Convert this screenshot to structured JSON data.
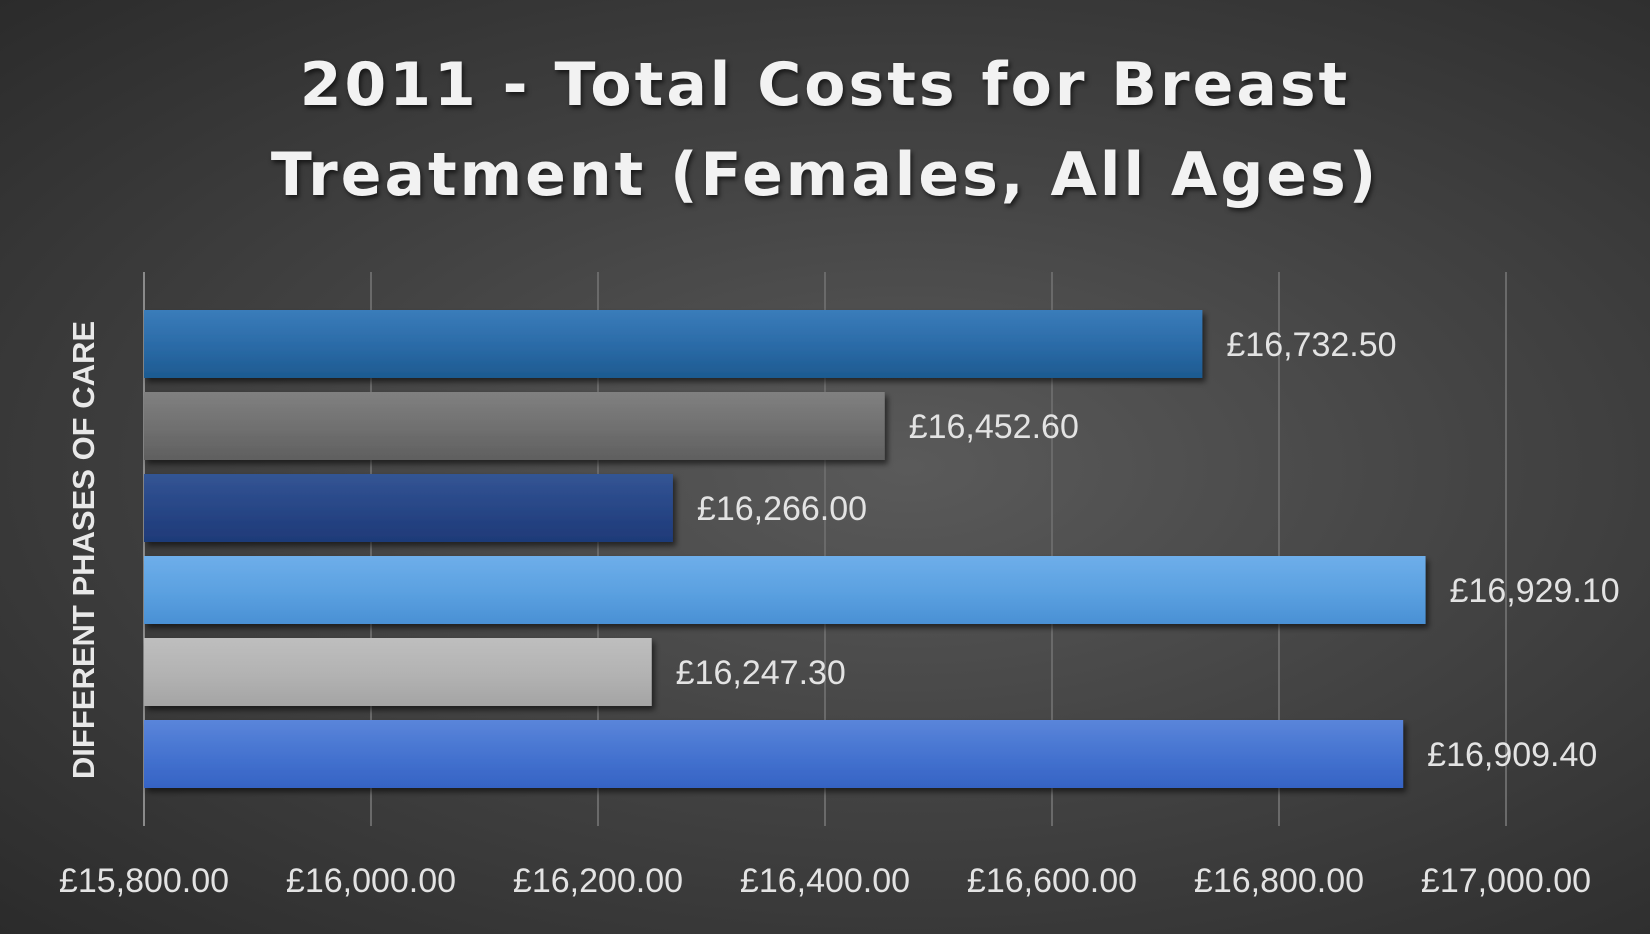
{
  "chart_data": {
    "type": "bar",
    "orientation": "horizontal",
    "title": "2011 - Total Costs for Breast Treatment (Females, All Ages)",
    "title_lines": [
      "2011 - Total Costs for Breast",
      "Treatment (Females, All Ages)"
    ],
    "xlabel": "",
    "ylabel": "DIFFERENT PHASES OF CARE",
    "xlim": [
      15800,
      17000
    ],
    "x_ticks": [
      15800,
      16000,
      16200,
      16400,
      16600,
      16800,
      17000
    ],
    "x_tick_labels": [
      "£15,800.00",
      "£16,000.00",
      "£16,200.00",
      "£16,400.00",
      "£16,600.00",
      "£16,800.00",
      "£17,000.00"
    ],
    "grid": "vertical",
    "legend": "none",
    "values": [
      16732.5,
      16452.6,
      16266.0,
      16929.1,
      16247.3,
      16909.4
    ],
    "data_labels": [
      "£16,732.50",
      "£16,452.60",
      "£16,266.00",
      "£16,929.10",
      "£16,247.30",
      "£16,909.40"
    ],
    "bar_colors": [
      "#2a6aa6",
      "#6f6f6f",
      "#274585",
      "#5aa0e0",
      "#b2b2b2",
      "#4472cf"
    ],
    "bar_colors_light": [
      "#3a7cba",
      "#808080",
      "#335594",
      "#6eaeea",
      "#bebebe",
      "#5a85da"
    ],
    "bar_colors_dark": [
      "#1d5a90",
      "#5f5f5f",
      "#1e3a78",
      "#4a90d4",
      "#a4a4a4",
      "#3563c4"
    ]
  }
}
